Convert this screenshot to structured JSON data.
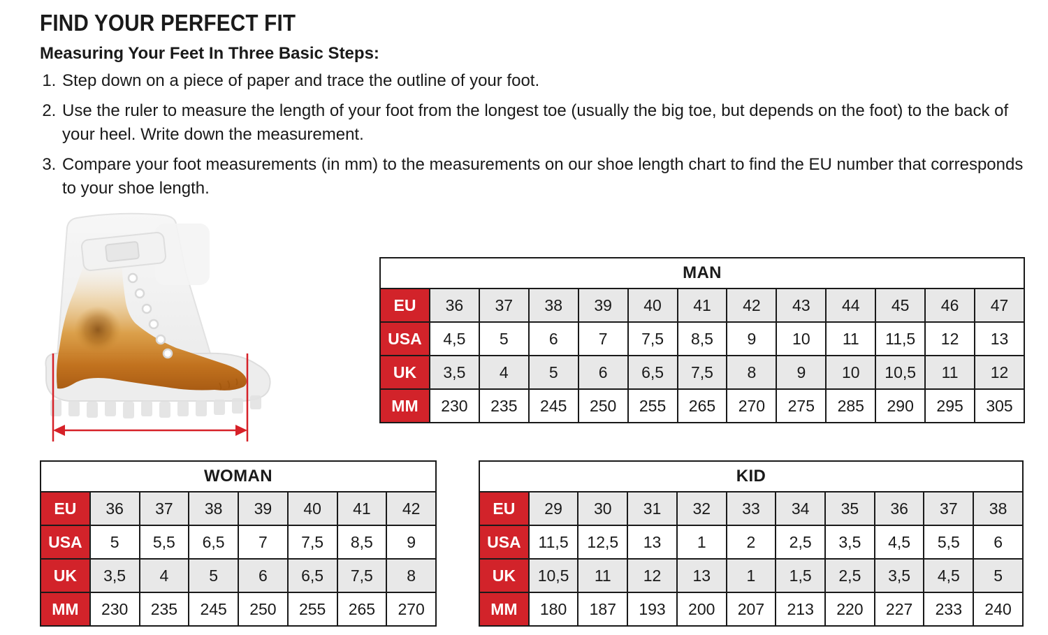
{
  "page": {
    "title": "FIND YOUR PERFECT FIT",
    "subtitle": "Measuring Your Feet In Three Basic Steps:",
    "steps": [
      "Step down on a piece of paper and trace the outline of your foot.",
      "Use the ruler to measure the length of your foot from the longest toe (usually the big toe, but depends on the foot) to the back of your heel. Write down the measurement.",
      "Compare your foot measurements (in mm) to the measurements on our shoe length chart to find the EU number that corresponds to your shoe length."
    ]
  },
  "figure": {
    "name": "boot-foot-length-measurement",
    "measure_arrow_color": "#d62128"
  },
  "colors": {
    "accent_red": "#d2232a",
    "row_shade_gray": "#e8e8e8",
    "table_border": "#1a1a1a"
  },
  "tables": {
    "man": {
      "title": "MAN",
      "rows": [
        {
          "label": "EU",
          "values": [
            "36",
            "37",
            "38",
            "39",
            "40",
            "41",
            "42",
            "43",
            "44",
            "45",
            "46",
            "47"
          ]
        },
        {
          "label": "USA",
          "values": [
            "4,5",
            "5",
            "6",
            "7",
            "7,5",
            "8,5",
            "9",
            "10",
            "11",
            "11,5",
            "12",
            "13"
          ]
        },
        {
          "label": "UK",
          "values": [
            "3,5",
            "4",
            "5",
            "6",
            "6,5",
            "7,5",
            "8",
            "9",
            "10",
            "10,5",
            "11",
            "12"
          ]
        },
        {
          "label": "MM",
          "values": [
            "230",
            "235",
            "245",
            "250",
            "255",
            "265",
            "270",
            "275",
            "285",
            "290",
            "295",
            "305"
          ]
        }
      ]
    },
    "woman": {
      "title": "WOMAN",
      "rows": [
        {
          "label": "EU",
          "values": [
            "36",
            "37",
            "38",
            "39",
            "40",
            "41",
            "42"
          ]
        },
        {
          "label": "USA",
          "values": [
            "5",
            "5,5",
            "6,5",
            "7",
            "7,5",
            "8,5",
            "9"
          ]
        },
        {
          "label": "UK",
          "values": [
            "3,5",
            "4",
            "5",
            "6",
            "6,5",
            "7,5",
            "8"
          ]
        },
        {
          "label": "MM",
          "values": [
            "230",
            "235",
            "245",
            "250",
            "255",
            "265",
            "270"
          ]
        }
      ]
    },
    "kid": {
      "title": "KID",
      "rows": [
        {
          "label": "EU",
          "values": [
            "29",
            "30",
            "31",
            "32",
            "33",
            "34",
            "35",
            "36",
            "37",
            "38"
          ]
        },
        {
          "label": "USA",
          "values": [
            "11,5",
            "12,5",
            "13",
            "1",
            "2",
            "2,5",
            "3,5",
            "4,5",
            "5,5",
            "6"
          ]
        },
        {
          "label": "UK",
          "values": [
            "10,5",
            "11",
            "12",
            "13",
            "1",
            "1,5",
            "2,5",
            "3,5",
            "4,5",
            "5"
          ]
        },
        {
          "label": "MM",
          "values": [
            "180",
            "187",
            "193",
            "200",
            "207",
            "213",
            "220",
            "227",
            "233",
            "240"
          ]
        }
      ]
    }
  }
}
